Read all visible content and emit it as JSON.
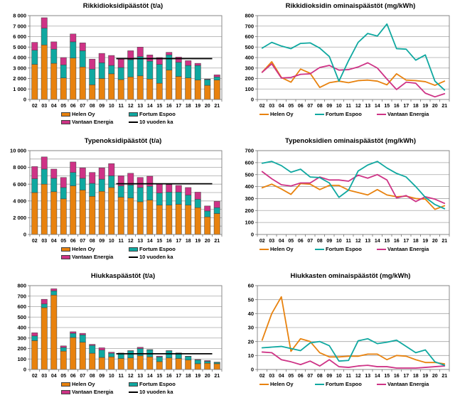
{
  "page": {
    "background": "#ffffff"
  },
  "colors": {
    "helen": "#E8820E",
    "fortum": "#0FA8A0",
    "vantaan": "#CE3386",
    "average": "#000000",
    "grid": "#A6A6A6",
    "axis": "#7F7F7F",
    "text": "#000000"
  },
  "legend_labels": {
    "helen": "Helen Oy",
    "fortum": "Fortum Espoo",
    "vantaan": "Vantaan Energia",
    "average": "10 vuoden ka"
  },
  "chart_data": [
    {
      "id": "so2-emissions",
      "type": "bar",
      "title": "Rikkidioksidipäästöt (t/a)",
      "ylabel": "t/a",
      "ylim": [
        0,
        8000
      ],
      "ygrid": 1000,
      "ylabel_step": 1000,
      "grid": true,
      "legend_position": "bottom",
      "categories": [
        "02",
        "03",
        "04",
        "05",
        "06",
        "07",
        "08",
        "09",
        "10",
        "11",
        "12",
        "13",
        "14",
        "15",
        "16",
        "17",
        "18",
        "19",
        "20",
        "21"
      ],
      "series": [
        {
          "name": "Helen Oy",
          "color_key": "helen",
          "values": [
            3350,
            5200,
            3450,
            2050,
            3950,
            3100,
            1400,
            2000,
            2450,
            1900,
            2150,
            2250,
            1950,
            1550,
            2800,
            2200,
            2050,
            1850,
            1350,
            1850
          ]
        },
        {
          "name": "Fortum Espoo",
          "color_key": "fortum",
          "values": [
            1350,
            1600,
            1350,
            1250,
            1550,
            1550,
            1500,
            1500,
            800,
            1150,
            1650,
            1850,
            1700,
            1800,
            1450,
            1350,
            1200,
            1400,
            550,
            300
          ]
        },
        {
          "name": "Vantaan Energia",
          "color_key": "vantaan",
          "values": [
            750,
            1000,
            700,
            700,
            750,
            750,
            950,
            900,
            950,
            850,
            850,
            900,
            600,
            650,
            250,
            500,
            450,
            200,
            50,
            200
          ]
        }
      ],
      "average_line": {
        "label": "10 vuoden ka",
        "value": 3900,
        "span": [
          "11",
          "20"
        ]
      }
    },
    {
      "id": "so2-specific",
      "type": "line",
      "title": "Rikkidioksidin ominaispäästöt (mg/kWh)",
      "ylabel": "mg/kWh",
      "ylim": [
        0,
        800
      ],
      "ygrid": 100,
      "ylabel_step": 100,
      "grid": true,
      "legend_position": "bottom",
      "categories": [
        "02",
        "03",
        "04",
        "05",
        "06",
        "07",
        "08",
        "09",
        "10",
        "11",
        "12",
        "13",
        "14",
        "15",
        "16",
        "17",
        "18",
        "19",
        "20",
        "21"
      ],
      "series": [
        {
          "name": "Helen Oy",
          "color_key": "helen",
          "values": [
            260,
            360,
            210,
            165,
            290,
            250,
            115,
            160,
            175,
            160,
            180,
            185,
            175,
            140,
            245,
            185,
            180,
            170,
            135,
            175
          ]
        },
        {
          "name": "Fortum Espoo",
          "color_key": "fortum",
          "values": [
            490,
            545,
            510,
            485,
            535,
            540,
            490,
            410,
            175,
            370,
            545,
            630,
            605,
            720,
            485,
            480,
            375,
            425,
            175,
            90
          ]
        },
        {
          "name": "Vantaan Energia",
          "color_key": "vantaan",
          "values": [
            260,
            340,
            205,
            210,
            240,
            245,
            305,
            325,
            280,
            285,
            310,
            350,
            300,
            195,
            95,
            165,
            155,
            60,
            25,
            55
          ]
        }
      ]
    },
    {
      "id": "nox-emissions",
      "type": "bar",
      "title": "Typenoksidipäästöt (t/a)",
      "ylabel": "t/a",
      "ylim": [
        0,
        10000
      ],
      "ygrid": 1000,
      "ylabel_step": 2000,
      "grid": true,
      "legend_position": "bottom",
      "categories": [
        "02",
        "03",
        "04",
        "05",
        "06",
        "07",
        "08",
        "09",
        "10",
        "11",
        "12",
        "13",
        "14",
        "15",
        "16",
        "17",
        "18",
        "19",
        "20",
        "21"
      ],
      "series": [
        {
          "name": "Helen Oy",
          "color_key": "helen",
          "values": [
            5000,
            6000,
            5100,
            4250,
            5800,
            5300,
            4550,
            5150,
            5600,
            4450,
            4350,
            3900,
            4100,
            3500,
            3500,
            3600,
            3500,
            3200,
            2100,
            2500
          ]
        },
        {
          "name": "Fortum Espoo",
          "color_key": "fortum",
          "values": [
            1650,
            1800,
            1600,
            1350,
            1600,
            1400,
            1550,
            1450,
            1400,
            1350,
            1550,
            1700,
            1650,
            1450,
            1550,
            1450,
            1200,
            1000,
            700,
            700
          ]
        },
        {
          "name": "Vantaan Energia",
          "color_key": "vantaan",
          "values": [
            1450,
            1450,
            1100,
            1200,
            1250,
            1250,
            1300,
            1350,
            1450,
            1200,
            1400,
            1200,
            1200,
            1100,
            900,
            800,
            900,
            850,
            600,
            750
          ]
        }
      ],
      "average_line": {
        "label": "10 vuoden ka",
        "value": 6050,
        "span": [
          "11",
          "20"
        ]
      }
    },
    {
      "id": "nox-specific",
      "type": "line",
      "title": "Typenoksidien ominaispäästöt (mg/kWh)",
      "ylabel": "mg/kWh",
      "ylim": [
        0,
        700
      ],
      "ygrid": 100,
      "ylabel_step": 100,
      "grid": true,
      "legend_position": "bottom",
      "categories": [
        "02",
        "03",
        "04",
        "05",
        "06",
        "07",
        "08",
        "09",
        "10",
        "11",
        "12",
        "13",
        "14",
        "15",
        "16",
        "17",
        "18",
        "19",
        "20",
        "21"
      ],
      "series": [
        {
          "name": "Helen Oy",
          "color_key": "helen",
          "values": [
            390,
            420,
            380,
            335,
            425,
            420,
            375,
            410,
            410,
            370,
            350,
            330,
            375,
            330,
            315,
            320,
            300,
            295,
            210,
            240
          ]
        },
        {
          "name": "Fortum Espoo",
          "color_key": "fortum",
          "values": [
            595,
            610,
            575,
            520,
            545,
            480,
            475,
            430,
            310,
            370,
            530,
            580,
            610,
            555,
            510,
            480,
            400,
            310,
            250,
            215
          ]
        },
        {
          "name": "Vantaan Energia",
          "color_key": "vantaan",
          "values": [
            525,
            465,
            415,
            405,
            430,
            430,
            480,
            455,
            455,
            445,
            495,
            470,
            500,
            455,
            305,
            325,
            275,
            315,
            295,
            260
          ]
        }
      ]
    },
    {
      "id": "particulate-emissions",
      "type": "bar",
      "title": "Hiukkaspäästöt (t/a)",
      "ylabel": "t/a",
      "ylim": [
        0,
        800
      ],
      "ygrid": 100,
      "ylabel_step": 100,
      "grid": true,
      "legend_position": "bottom",
      "categories": [
        "02",
        "03",
        "04",
        "05",
        "06",
        "07",
        "08",
        "09",
        "10",
        "11",
        "12",
        "13",
        "14",
        "15",
        "16",
        "17",
        "18",
        "19",
        "20",
        "21"
      ],
      "series": [
        {
          "name": "Helen Oy",
          "color_key": "helen",
          "values": [
            275,
            590,
            710,
            175,
            305,
            260,
            155,
            115,
            120,
            105,
            110,
            130,
            120,
            75,
            110,
            105,
            90,
            55,
            60,
            55
          ]
        },
        {
          "name": "Fortum Espoo",
          "color_key": "fortum",
          "values": [
            45,
            35,
            40,
            35,
            40,
            70,
            75,
            70,
            35,
            45,
            68,
            70,
            68,
            45,
            68,
            50,
            35,
            35,
            18,
            13
          ]
        },
        {
          "name": "Vantaan Energia",
          "color_key": "vantaan",
          "values": [
            30,
            45,
            20,
            15,
            15,
            15,
            10,
            22,
            10,
            7,
            2,
            12,
            2,
            8,
            2,
            3,
            2,
            5,
            7,
            2
          ]
        }
      ],
      "average_line": {
        "label": "10 vuoden ka",
        "value": 150,
        "span": [
          "11",
          "20"
        ]
      }
    },
    {
      "id": "particulate-specific",
      "type": "line",
      "title": "Hiukkasten ominaispäästöt (mg/kWh)",
      "ylabel": "mg/kWh",
      "ylim": [
        0,
        60
      ],
      "ygrid": 10,
      "ylabel_step": 10,
      "grid": true,
      "legend_position": "bottom",
      "categories": [
        "02",
        "03",
        "04",
        "05",
        "06",
        "07",
        "08",
        "09",
        "10",
        "11",
        "12",
        "13",
        "14",
        "15",
        "16",
        "17",
        "18",
        "19",
        "20",
        "21"
      ],
      "series": [
        {
          "name": "Helen Oy",
          "color_key": "helen",
          "values": [
            21,
            40,
            52,
            13,
            22,
            20,
            12,
            9,
            9,
            9.5,
            9.5,
            11,
            11,
            7,
            10,
            9.5,
            7,
            5,
            5,
            4
          ]
        },
        {
          "name": "Fortum Espoo",
          "color_key": "fortum",
          "values": [
            15.5,
            16,
            16.5,
            15,
            13.5,
            19,
            20,
            17,
            6,
            6.5,
            20.5,
            22,
            18.5,
            19.5,
            21,
            16.5,
            12,
            14,
            5.5,
            3
          ]
        },
        {
          "name": "Vantaan Energia",
          "color_key": "vantaan",
          "values": [
            12.5,
            12,
            7,
            5.5,
            3.5,
            6,
            2.5,
            7,
            2,
            1.5,
            2.5,
            3,
            2,
            2,
            1,
            1,
            1,
            1.5,
            2,
            2.5
          ]
        }
      ]
    }
  ]
}
